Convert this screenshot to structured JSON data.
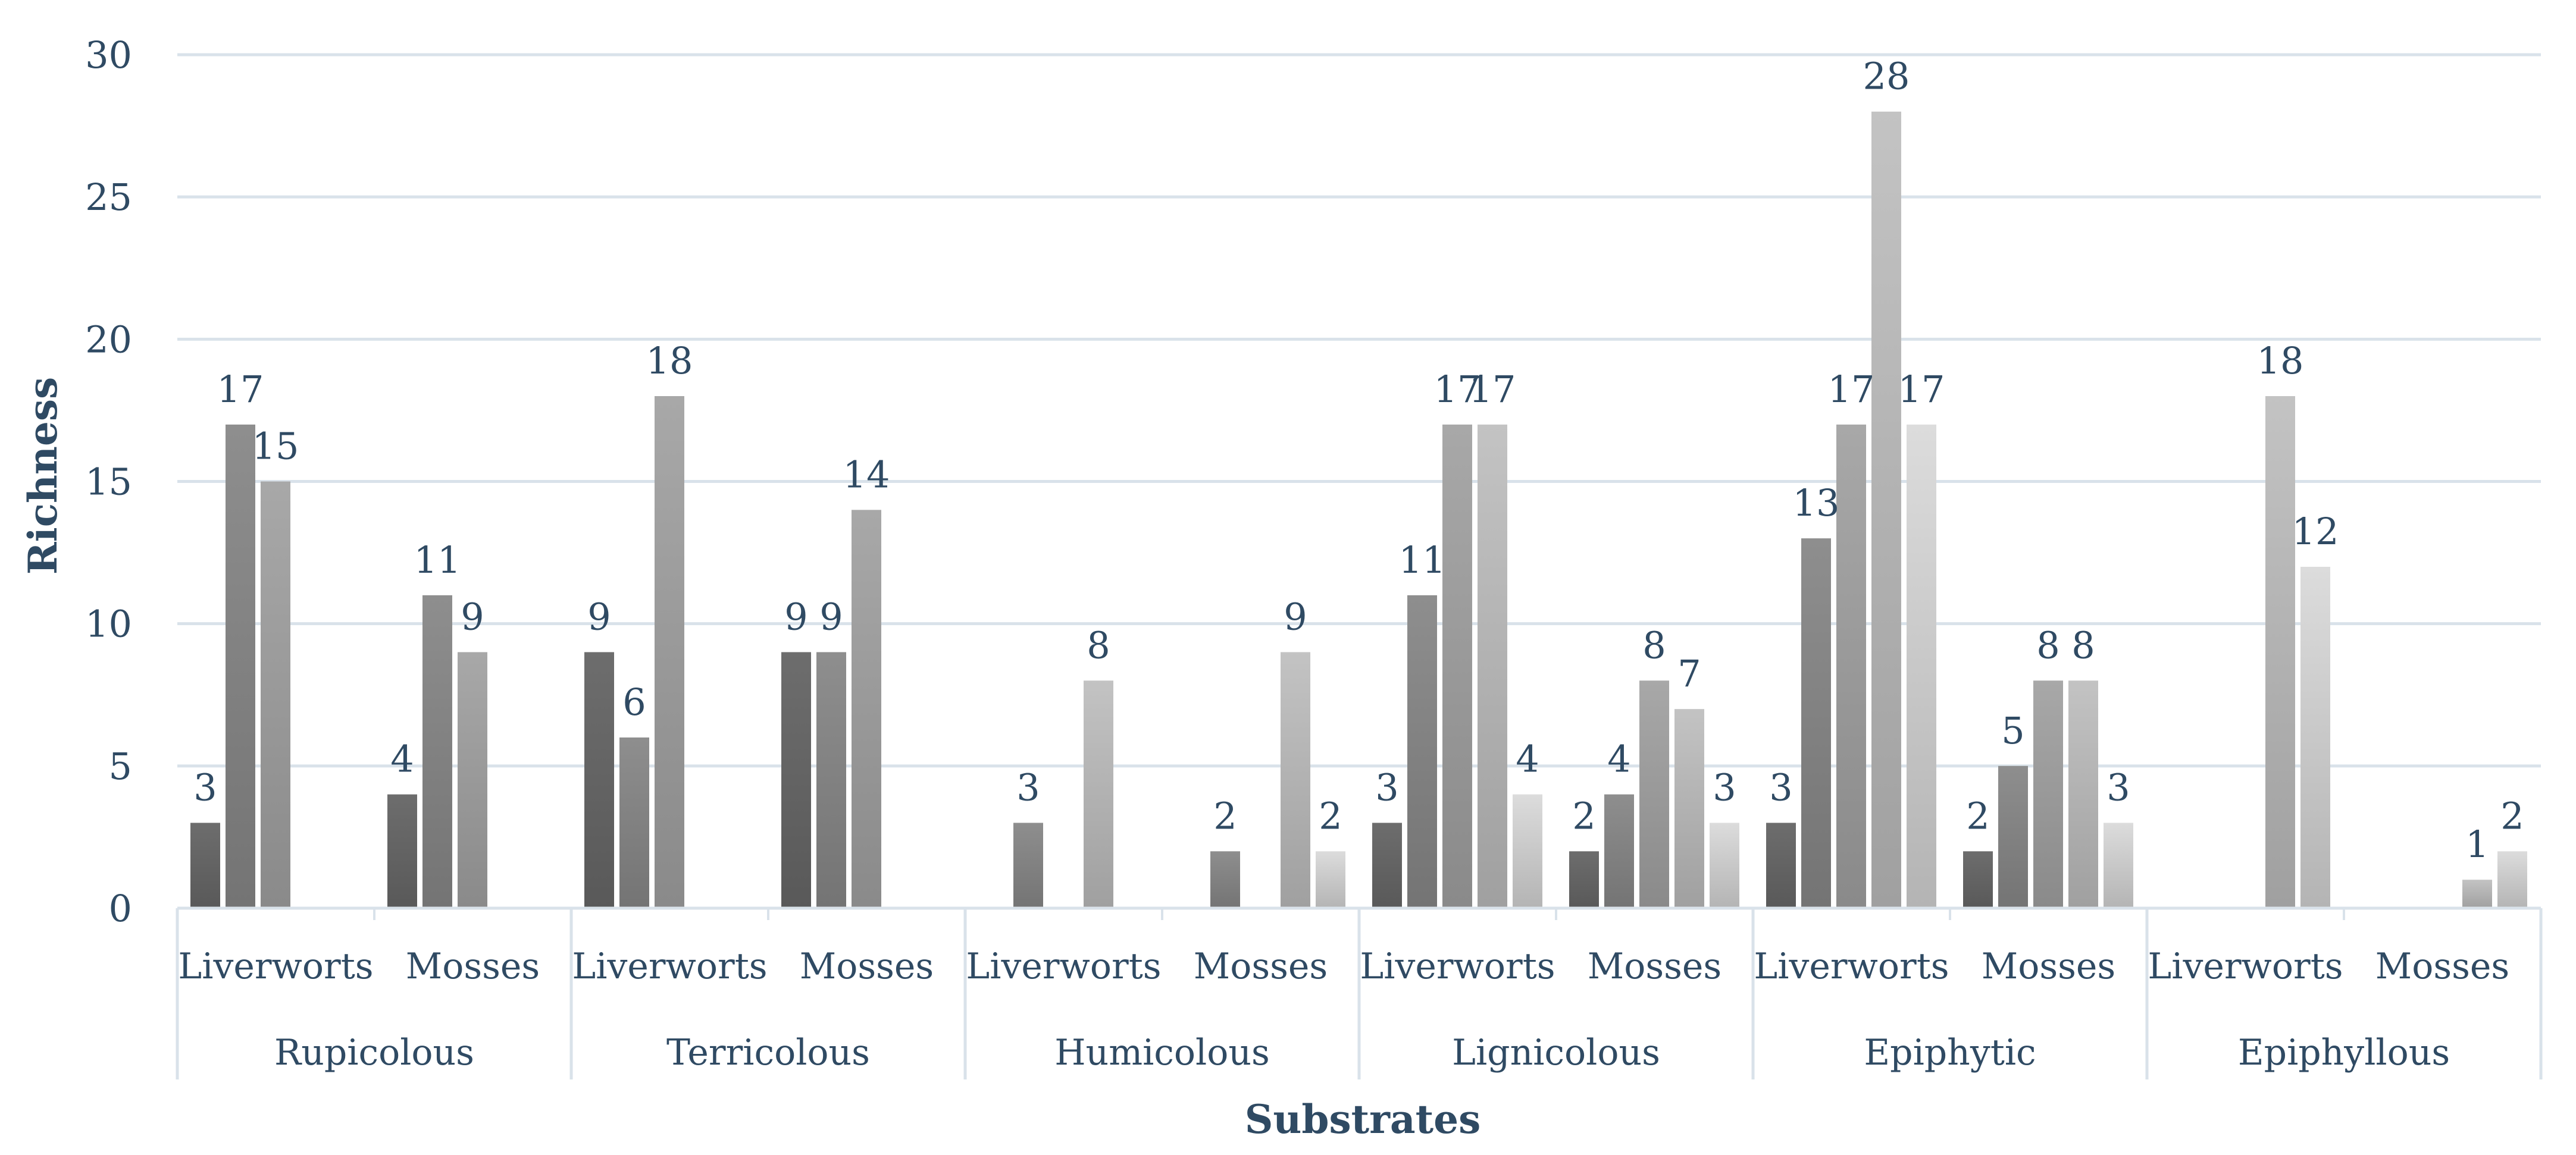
{
  "chart_data": {
    "type": "bar",
    "title": "",
    "xlabel": "Substrates",
    "ylabel": "Richness",
    "ylim": [
      0,
      30
    ],
    "yticks": [
      0,
      5,
      10,
      15,
      20,
      25,
      30
    ],
    "grid": true,
    "legend": "none",
    "groups": [
      {
        "name": "Rupicolous",
        "categories": [
          {
            "name": "Liverworts",
            "values": [
              3,
              17,
              15,
              null,
              null
            ]
          },
          {
            "name": "Mosses",
            "values": [
              4,
              11,
              9,
              null,
              null
            ]
          }
        ]
      },
      {
        "name": "Terricolous",
        "categories": [
          {
            "name": "Liverworts",
            "values": [
              9,
              6,
              18,
              null,
              null
            ]
          },
          {
            "name": "Mosses",
            "values": [
              9,
              9,
              14,
              null,
              null
            ]
          }
        ]
      },
      {
        "name": "Humicolous",
        "categories": [
          {
            "name": "Liverworts",
            "values": [
              null,
              3,
              null,
              8,
              null
            ]
          },
          {
            "name": "Mosses",
            "values": [
              null,
              2,
              null,
              9,
              2
            ]
          }
        ]
      },
      {
        "name": "Lignicolous",
        "categories": [
          {
            "name": "Liverworts",
            "values": [
              3,
              11,
              17,
              17,
              4
            ]
          },
          {
            "name": "Mosses",
            "values": [
              2,
              4,
              8,
              7,
              3
            ]
          }
        ]
      },
      {
        "name": "Epiphytic",
        "categories": [
          {
            "name": "Liverworts",
            "values": [
              3,
              13,
              17,
              28,
              17
            ]
          },
          {
            "name": "Mosses",
            "values": [
              2,
              5,
              8,
              8,
              3
            ]
          }
        ]
      },
      {
        "name": "Epiphyllous",
        "categories": [
          {
            "name": "Liverworts",
            "values": [
              null,
              null,
              null,
              18,
              12
            ]
          },
          {
            "name": "Mosses",
            "values": [
              null,
              null,
              null,
              1,
              2
            ]
          }
        ]
      }
    ],
    "series_colors": [
      "#6d6d6d",
      "#8e8e8e",
      "#a8a8a8",
      "#c3c3c3",
      "#dcdcdc"
    ]
  }
}
